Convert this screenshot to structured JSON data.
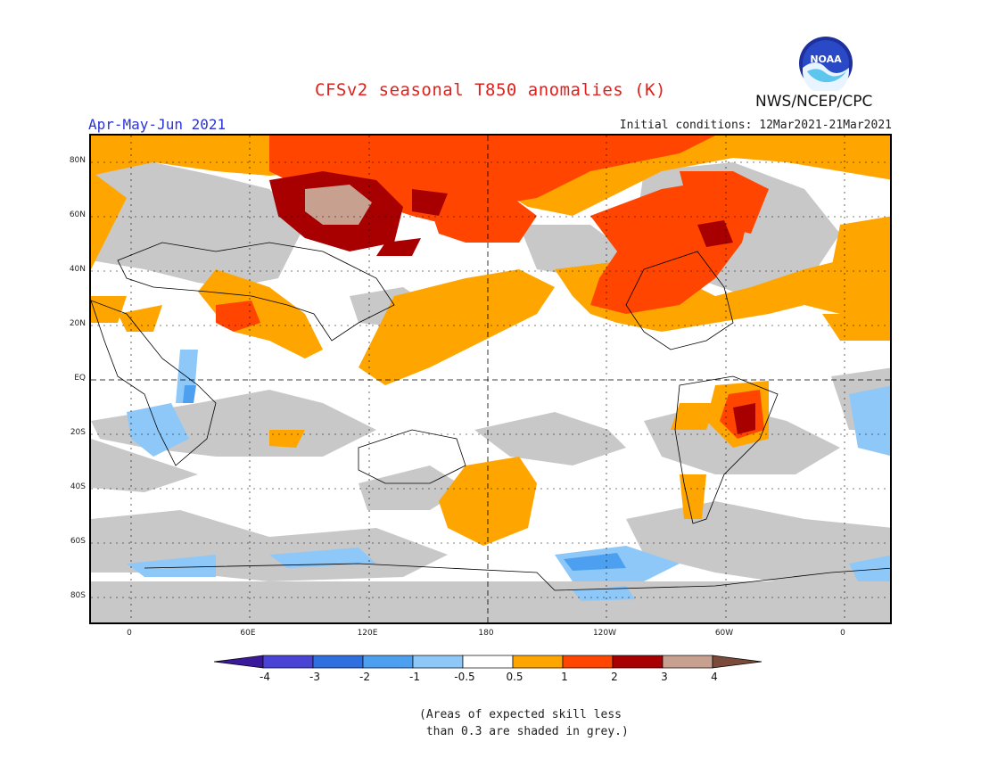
{
  "title": "CFSv2 seasonal T850 anomalies (K)",
  "season": "Apr-May-Jun 2021",
  "initial_conditions": "Initial conditions: 12Mar2021-21Mar2021",
  "agency": "NWS/NCEP/CPC",
  "logo_text": "NOAA",
  "latitude_labels": [
    "80N",
    "60N",
    "40N",
    "20N",
    "EQ",
    "20S",
    "40S",
    "60S",
    "80S"
  ],
  "longitude_labels": [
    "0",
    "60E",
    "120E",
    "180",
    "120W",
    "60W",
    "0"
  ],
  "colorbar": {
    "tick_labels": [
      "-4",
      "-3",
      "-2",
      "-1",
      "-0.5",
      "0.5",
      "1",
      "2",
      "3",
      "4"
    ],
    "colors": [
      "#3a1a9a",
      "#4a44d6",
      "#2f6fe0",
      "#4da0f0",
      "#8ec8f8",
      "#ffffff",
      "#ffa500",
      "#ff4500",
      "#a80000",
      "#c8a090",
      "#7a4a3a"
    ]
  },
  "note": "(Areas of expected skill less\n than 0.3 are shaded in grey.)",
  "map_colors": {
    "skill_grey": "#c8c8c8",
    "anom_05_1": "#ffa500",
    "anom_1_2": "#ff4500",
    "anom_2_3": "#a80000",
    "anom_3_4": "#c8a090",
    "anom_m1_m05": "#8ec8f8",
    "anom_m2_m1": "#4da0f0"
  }
}
